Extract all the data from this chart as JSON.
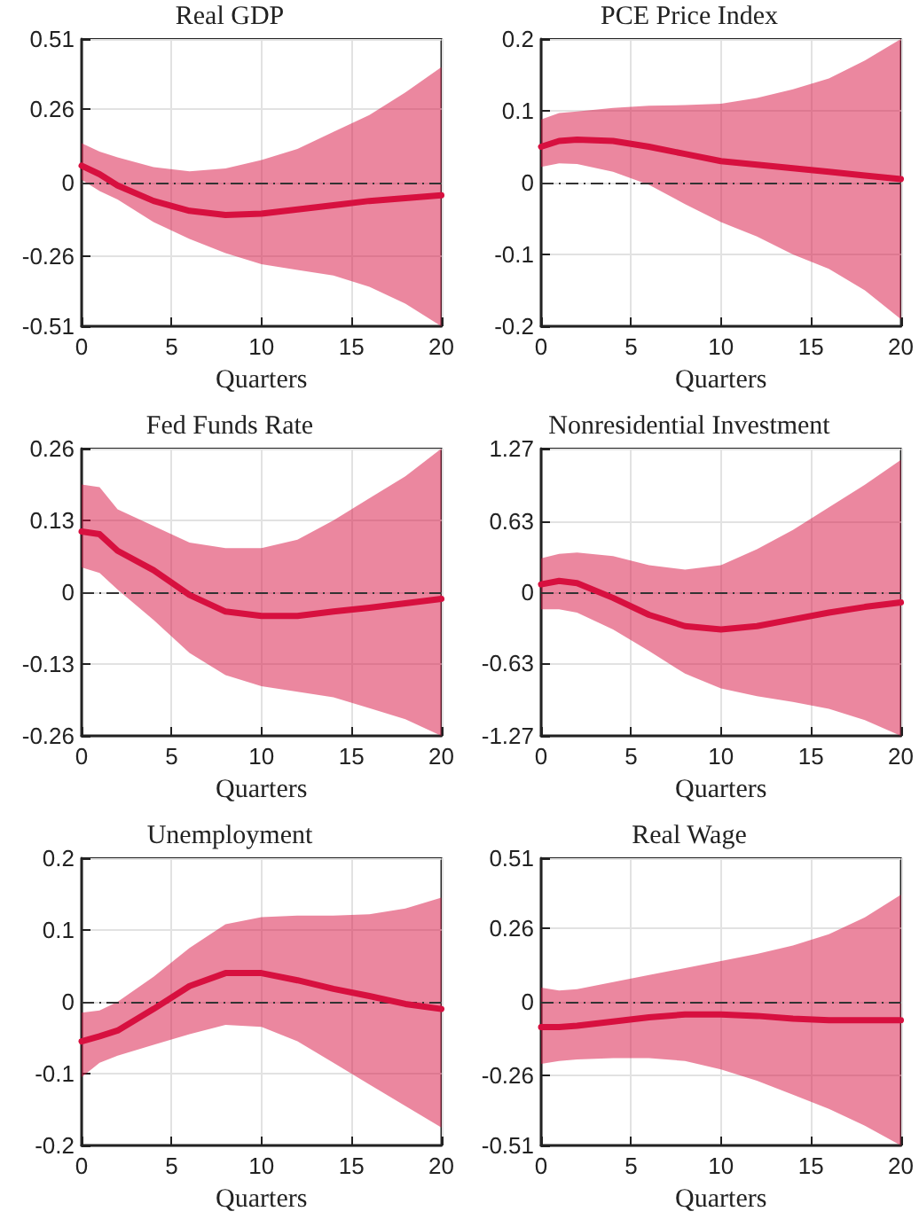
{
  "chart_data": [
    {
      "type": "line",
      "title": "Real GDP",
      "xlabel": "Quarters",
      "xlim": [
        0,
        20
      ],
      "xticks": [
        0,
        5,
        10,
        15,
        20
      ],
      "ylim": [
        -0.51,
        0.51
      ],
      "yticks": [
        -0.51,
        -0.26,
        0,
        0.26,
        0.51
      ],
      "grid": true,
      "ref_lines": [
        {
          "axis": "y",
          "value": 0,
          "line_style": "dashdot",
          "color": "#333333"
        }
      ],
      "series": [
        {
          "color": "#d7103f",
          "x": [
            0,
            1,
            2,
            4,
            6,
            8,
            10,
            12,
            14,
            16,
            18,
            20
          ],
          "values": [
            0.06,
            0.03,
            -0.01,
            -0.065,
            -0.1,
            -0.115,
            -0.11,
            -0.095,
            -0.08,
            -0.065,
            -0.055,
            -0.045
          ],
          "upper": [
            0.14,
            0.11,
            0.09,
            0.055,
            0.04,
            0.05,
            0.08,
            0.12,
            0.18,
            0.24,
            0.32,
            0.41
          ],
          "lower": [
            0.01,
            -0.03,
            -0.06,
            -0.14,
            -0.2,
            -0.25,
            -0.29,
            -0.31,
            -0.33,
            -0.37,
            -0.43,
            -0.51
          ]
        }
      ]
    },
    {
      "type": "line",
      "title": "PCE Price Index",
      "xlabel": "Quarters",
      "xlim": [
        0,
        20
      ],
      "xticks": [
        0,
        5,
        10,
        15,
        20
      ],
      "ylim": [
        -0.2,
        0.2
      ],
      "yticks": [
        -0.2,
        -0.1,
        0,
        0.1,
        0.2
      ],
      "grid": true,
      "ref_lines": [
        {
          "axis": "y",
          "value": 0,
          "line_style": "dashdot",
          "color": "#333333"
        }
      ],
      "series": [
        {
          "color": "#d7103f",
          "x": [
            0,
            1,
            2,
            4,
            6,
            8,
            10,
            12,
            14,
            16,
            18,
            20
          ],
          "values": [
            0.05,
            0.058,
            0.06,
            0.058,
            0.05,
            0.04,
            0.03,
            0.025,
            0.02,
            0.015,
            0.01,
            0.005
          ],
          "upper": [
            0.088,
            0.097,
            0.099,
            0.104,
            0.107,
            0.108,
            0.11,
            0.118,
            0.13,
            0.145,
            0.17,
            0.2
          ],
          "lower": [
            0.022,
            0.027,
            0.026,
            0.015,
            -0.003,
            -0.03,
            -0.055,
            -0.075,
            -0.1,
            -0.12,
            -0.15,
            -0.19
          ]
        }
      ]
    },
    {
      "type": "line",
      "title": "Fed Funds Rate",
      "xlabel": "Quarters",
      "xlim": [
        0,
        20
      ],
      "xticks": [
        0,
        5,
        10,
        15,
        20
      ],
      "ylim": [
        -0.26,
        0.26
      ],
      "yticks": [
        -0.26,
        -0.13,
        0,
        0.13,
        0.26
      ],
      "grid": true,
      "ref_lines": [
        {
          "axis": "y",
          "value": 0,
          "line_style": "dashdot",
          "color": "#333333"
        }
      ],
      "series": [
        {
          "color": "#d7103f",
          "x": [
            0,
            1,
            2,
            4,
            6,
            8,
            10,
            12,
            14,
            16,
            18,
            20
          ],
          "values": [
            0.11,
            0.105,
            0.075,
            0.04,
            -0.005,
            -0.035,
            -0.043,
            -0.043,
            -0.035,
            -0.028,
            -0.02,
            -0.012
          ],
          "upper": [
            0.195,
            0.19,
            0.15,
            0.12,
            0.09,
            0.08,
            0.08,
            0.095,
            0.13,
            0.17,
            0.21,
            0.26
          ],
          "lower": [
            0.045,
            0.035,
            0.005,
            -0.05,
            -0.11,
            -0.15,
            -0.17,
            -0.18,
            -0.19,
            -0.21,
            -0.23,
            -0.26
          ]
        }
      ]
    },
    {
      "type": "line",
      "title": "Nonresidential Investment",
      "xlabel": "Quarters",
      "xlim": [
        0,
        20
      ],
      "xticks": [
        0,
        5,
        10,
        15,
        20
      ],
      "ylim": [
        -1.27,
        1.27
      ],
      "yticks": [
        -1.27,
        -0.63,
        0,
        0.63,
        1.27
      ],
      "grid": true,
      "ref_lines": [
        {
          "axis": "y",
          "value": 0,
          "line_style": "dashdot",
          "color": "#333333"
        }
      ],
      "series": [
        {
          "color": "#d7103f",
          "x": [
            0,
            1,
            2,
            4,
            6,
            8,
            10,
            12,
            14,
            16,
            18,
            20
          ],
          "values": [
            0.07,
            0.1,
            0.08,
            -0.05,
            -0.2,
            -0.3,
            -0.33,
            -0.3,
            -0.24,
            -0.18,
            -0.13,
            -0.09
          ],
          "upper": [
            0.3,
            0.34,
            0.35,
            0.32,
            0.24,
            0.2,
            0.24,
            0.38,
            0.55,
            0.75,
            0.95,
            1.17
          ],
          "lower": [
            -0.15,
            -0.15,
            -0.18,
            -0.33,
            -0.52,
            -0.72,
            -0.85,
            -0.92,
            -0.97,
            -1.03,
            -1.13,
            -1.27
          ]
        }
      ]
    },
    {
      "type": "line",
      "title": "Unemployment",
      "xlabel": "Quarters",
      "xlim": [
        0,
        20
      ],
      "xticks": [
        0,
        5,
        10,
        15,
        20
      ],
      "ylim": [
        -0.2,
        0.2
      ],
      "yticks": [
        -0.2,
        -0.1,
        0,
        0.1,
        0.2
      ],
      "grid": true,
      "ref_lines": [
        {
          "axis": "y",
          "value": 0,
          "line_style": "dashdot",
          "color": "#333333"
        }
      ],
      "series": [
        {
          "color": "#d7103f",
          "x": [
            0,
            1,
            2,
            4,
            6,
            8,
            10,
            12,
            14,
            16,
            18,
            20
          ],
          "values": [
            -0.055,
            -0.048,
            -0.04,
            -0.01,
            0.022,
            0.04,
            0.04,
            0.03,
            0.018,
            0.008,
            -0.003,
            -0.01
          ],
          "upper": [
            -0.015,
            -0.012,
            0.0,
            0.035,
            0.075,
            0.108,
            0.118,
            0.12,
            0.12,
            0.122,
            0.13,
            0.145
          ],
          "lower": [
            -0.105,
            -0.085,
            -0.075,
            -0.06,
            -0.045,
            -0.032,
            -0.035,
            -0.055,
            -0.085,
            -0.115,
            -0.145,
            -0.175
          ]
        }
      ]
    },
    {
      "type": "line",
      "title": "Real Wage",
      "xlabel": "Quarters",
      "xlim": [
        0,
        20
      ],
      "xticks": [
        0,
        5,
        10,
        15,
        20
      ],
      "ylim": [
        -0.51,
        0.51
      ],
      "yticks": [
        -0.51,
        -0.26,
        0,
        0.26,
        0.51
      ],
      "grid": true,
      "ref_lines": [
        {
          "axis": "y",
          "value": 0,
          "line_style": "dashdot",
          "color": "#333333"
        }
      ],
      "series": [
        {
          "color": "#d7103f",
          "x": [
            0,
            1,
            2,
            4,
            6,
            8,
            10,
            12,
            14,
            16,
            18,
            20
          ],
          "values": [
            -0.09,
            -0.09,
            -0.085,
            -0.07,
            -0.055,
            -0.045,
            -0.045,
            -0.05,
            -0.06,
            -0.065,
            -0.065,
            -0.065
          ],
          "upper": [
            0.05,
            0.04,
            0.045,
            0.07,
            0.095,
            0.12,
            0.145,
            0.17,
            0.2,
            0.24,
            0.3,
            0.38
          ],
          "lower": [
            -0.22,
            -0.21,
            -0.205,
            -0.2,
            -0.2,
            -0.21,
            -0.24,
            -0.28,
            -0.33,
            -0.38,
            -0.44,
            -0.51
          ]
        }
      ]
    }
  ]
}
